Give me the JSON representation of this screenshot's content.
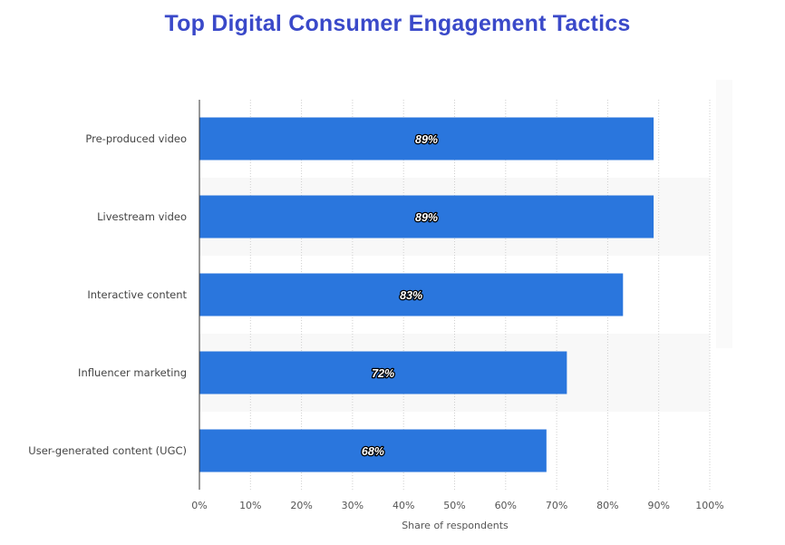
{
  "chart_data": {
    "type": "bar",
    "orientation": "horizontal",
    "title": "Top Digital Consumer Engagement Tactics",
    "categories": [
      "Pre-produced video",
      "Livestream video",
      "Interactive content",
      "Influencer marketing",
      "User-generated content (UGC)"
    ],
    "values": [
      89,
      89,
      83,
      72,
      68
    ],
    "data_labels": [
      "89%",
      "89%",
      "83%",
      "72%",
      "68%"
    ],
    "xlabel": "Share of respondents",
    "ylabel": "",
    "xlim": [
      0,
      100
    ],
    "xticks": [
      0,
      10,
      20,
      30,
      40,
      50,
      60,
      70,
      80,
      90,
      100
    ],
    "xtick_labels": [
      "0%",
      "10%",
      "20%",
      "30%",
      "40%",
      "50%",
      "60%",
      "70%",
      "80%",
      "90%",
      "100%"
    ],
    "grid": true,
    "bar_color": "#2a76dd",
    "title_color": "#3a49c9"
  }
}
